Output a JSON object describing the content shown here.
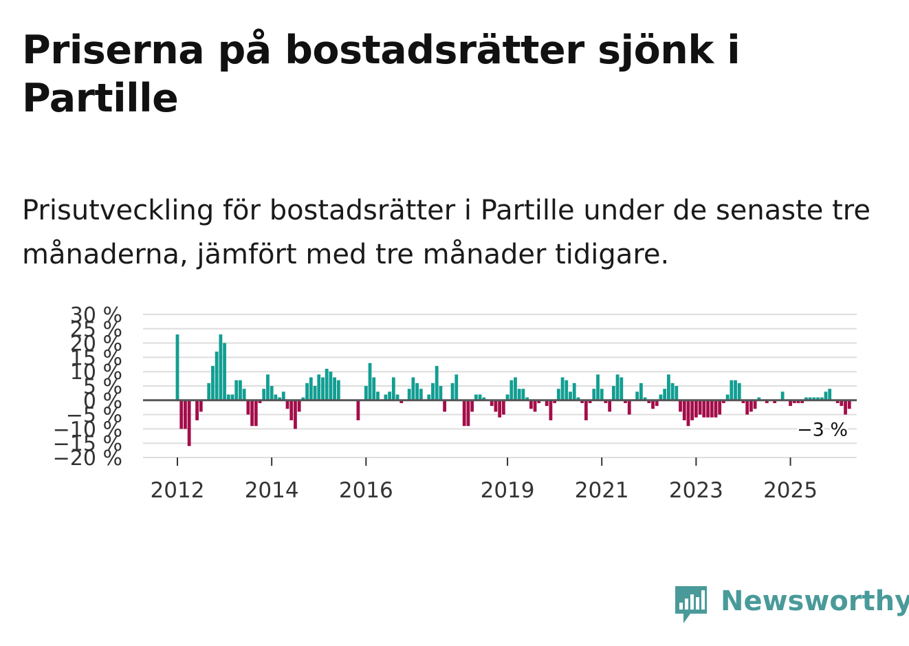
{
  "title": "Priserna på bostadsrätter sjönk i Partille",
  "subtitle": "Prisutveckling för bostadsrätter i Partille under de senaste tre månaderna, jämfört med tre månader tidigare.",
  "brand": {
    "name": "Newsworthy",
    "color": "#4a9a9a"
  },
  "colors": {
    "positive": "#129e92",
    "negative": "#a30d4a",
    "grid": "#dddddd",
    "baseline": "#555555"
  },
  "chart_data": {
    "type": "bar",
    "title": "Prisutveckling för bostadsrätter i Partille",
    "xlabel": "",
    "ylabel": "",
    "ylim": [
      -20,
      30
    ],
    "yticks": [
      30,
      25,
      20,
      15,
      10,
      5,
      0,
      -5,
      -10,
      -15,
      -20
    ],
    "ytick_labels": [
      "30 %",
      "25 %",
      "20 %",
      "15 %",
      "10 %",
      "5 %",
      "0 %",
      "−5 %",
      "−10 %",
      "−15 %",
      "−20 %"
    ],
    "x_ticks": [
      {
        "label": "2012",
        "index": 0
      },
      {
        "label": "2014",
        "index": 24
      },
      {
        "label": "2016",
        "index": 48
      },
      {
        "label": "2019",
        "index": 84
      },
      {
        "label": "2021",
        "index": 108
      },
      {
        "label": "2023",
        "index": 132
      },
      {
        "label": "2025",
        "index": 156
      }
    ],
    "start": "2012-01",
    "values": [
      23,
      -10,
      -10,
      -16,
      0,
      -7,
      -4,
      0,
      6,
      12,
      17,
      23,
      20,
      2,
      2,
      7,
      7,
      4,
      -5,
      -9,
      -9,
      -1,
      4,
      9,
      5,
      2,
      1,
      3,
      -3,
      -7,
      -10,
      -4,
      1,
      6,
      8,
      5,
      9,
      8,
      11,
      10,
      8,
      7,
      0,
      0,
      0,
      0,
      -7,
      0,
      5,
      13,
      8,
      3,
      0,
      2,
      3,
      8,
      2,
      -1,
      0,
      4,
      8,
      6,
      4,
      0,
      2,
      6,
      12,
      5,
      -4,
      0,
      6,
      9,
      0,
      -9,
      -9,
      -4,
      2,
      2,
      1,
      0,
      -2,
      -4,
      -6,
      -5,
      2,
      7,
      8,
      4,
      4,
      1,
      -3,
      -4,
      -1,
      0,
      -2,
      -7,
      -1,
      4,
      8,
      7,
      3,
      6,
      1,
      -1,
      -7,
      -1,
      4,
      9,
      4,
      -1,
      -4,
      5,
      9,
      8,
      -1,
      -5,
      0,
      3,
      6,
      1,
      -1,
      -3,
      -2,
      2,
      4,
      9,
      6,
      5,
      -4,
      -7,
      -9,
      -7,
      -6,
      -5,
      -6,
      -6,
      -6,
      -6,
      -5,
      -1,
      2,
      7,
      7,
      6,
      -1,
      -5,
      -4,
      -3,
      1,
      0,
      -1,
      0,
      -1,
      0,
      3,
      0,
      -2,
      -1,
      -1,
      -1,
      1,
      1,
      1,
      1,
      1,
      3,
      4,
      0,
      -1,
      -2,
      -5,
      -3
    ],
    "last_value_label": "−3 %"
  }
}
